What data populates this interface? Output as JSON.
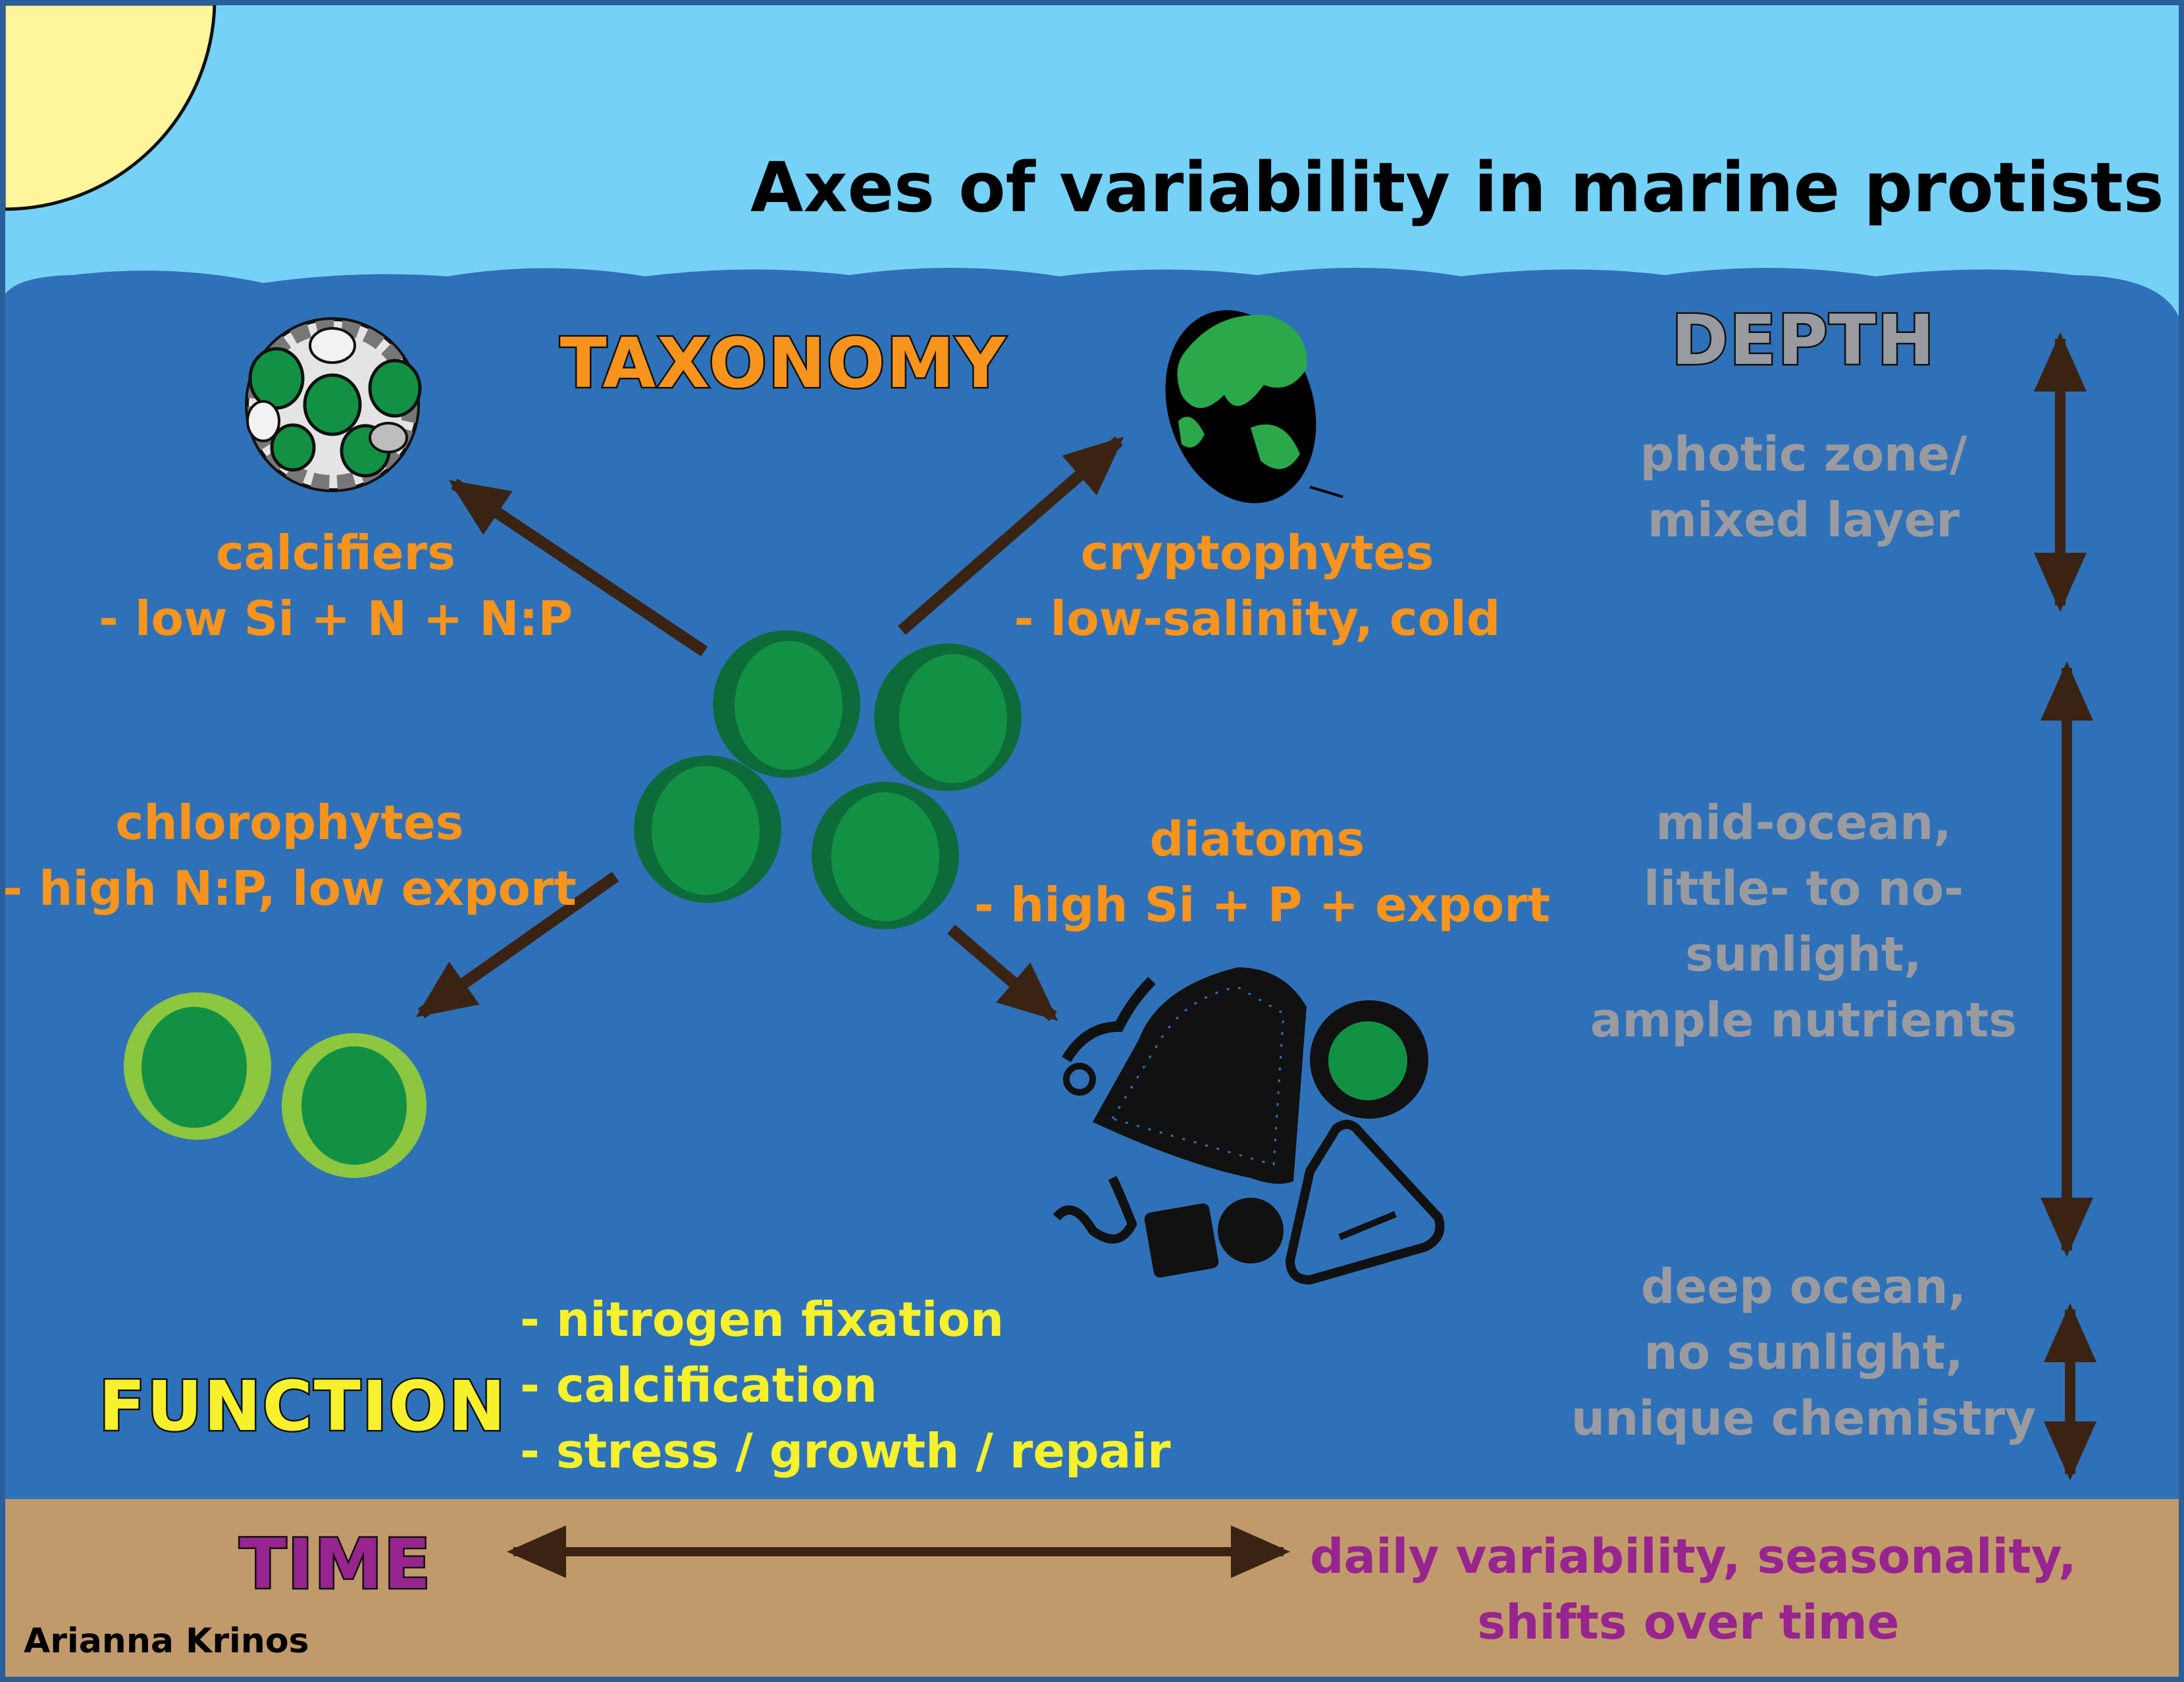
{
  "title": "Axes of variability in marine protists",
  "author": "Arianna Krinos",
  "colors": {
    "sky": "#75d1f6",
    "ocean": "#2f71b8",
    "seafloor": "#c19a6b",
    "sun": "#fff59b",
    "arrow": "#3b2314",
    "label_orange": "#f7941d",
    "label_grey": "#9a9ba1",
    "label_yellow": "#f6f12c",
    "label_purple": "#97248f"
  },
  "taxonomy": {
    "heading": "TAXONOMY",
    "groups": [
      {
        "id": "calcifiers",
        "icon": "coccolithophore-icon",
        "name": "calcifiers",
        "detail": "- low Si + N + N:P"
      },
      {
        "id": "cryptophytes",
        "icon": "cryptophyte-icon",
        "name": "cryptophytes",
        "detail": "- low-salinity, cold"
      },
      {
        "id": "chlorophytes",
        "icon": "chlorophyte-cells-icon",
        "name": "chlorophytes",
        "detail": "- high N:P, low export"
      },
      {
        "id": "diatoms",
        "icon": "diatom-cluster-icon",
        "name": "diatoms",
        "detail": "- high Si + P + export"
      }
    ]
  },
  "depth": {
    "heading": "DEPTH",
    "zones": [
      {
        "lines": [
          "photic zone/",
          "mixed layer"
        ]
      },
      {
        "lines": [
          "mid-ocean,",
          "little- to no-",
          "sunlight,",
          "ample nutrients"
        ]
      },
      {
        "lines": [
          "deep ocean,",
          "no sunlight,",
          "unique chemistry"
        ]
      }
    ]
  },
  "function": {
    "heading": "FUNCTION",
    "items": [
      "- nitrogen fixation",
      "- calcification",
      "- stress / growth / repair"
    ]
  },
  "time": {
    "heading": "TIME",
    "lines": [
      "daily variability, seasonality,",
      "shifts over time"
    ]
  }
}
